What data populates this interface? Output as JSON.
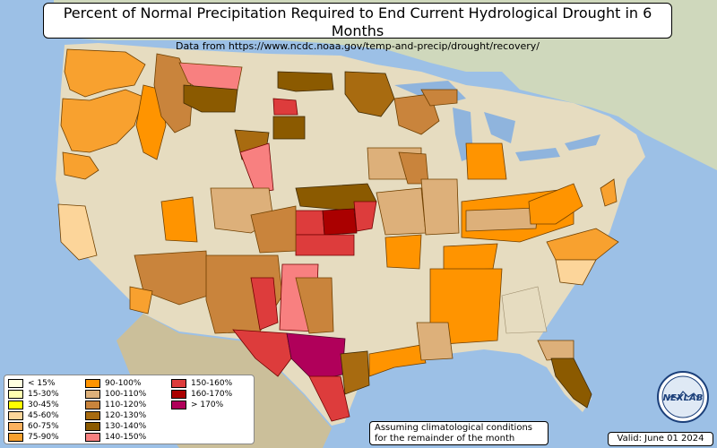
{
  "title": "Percent of Normal Precipitation Required to End Current Hydrological Drought in 6 Months",
  "subtitle": "Data from https://www.ncdc.noaa.gov/temp-and-precip/drought/recovery/",
  "legend": [
    {
      "label": "< 15%",
      "color": "#ffffe0"
    },
    {
      "label": "15-30%",
      "color": "#ffffb0"
    },
    {
      "label": "30-45%",
      "color": "#ffff00"
    },
    {
      "label": "45-60%",
      "color": "#fcd59a"
    },
    {
      "label": "60-75%",
      "color": "#fbb15e"
    },
    {
      "label": "75-90%",
      "color": "#f8a12f"
    },
    {
      "label": "90-100%",
      "color": "#ff9400"
    },
    {
      "label": "100-110%",
      "color": "#ddb07a"
    },
    {
      "label": "110-120%",
      "color": "#c9843c"
    },
    {
      "label": "120-130%",
      "color": "#a86b10"
    },
    {
      "label": "130-140%",
      "color": "#8b5a00"
    },
    {
      "label": "140-150%",
      "color": "#f88080"
    },
    {
      "label": "150-160%",
      "color": "#dd3c3c"
    },
    {
      "label": "160-170%",
      "color": "#aa0000"
    },
    {
      "label": "> 170%",
      "color": "#b0005a"
    }
  ],
  "note_line1": "Assuming climatological conditions",
  "note_line2": "for the remainder of the month",
  "valid": "Valid: June 01 2024",
  "logo_text": "NEXLAB",
  "colors": {
    "ocean": "#9cc0e6",
    "land": "#e6dcc0",
    "mexico": "#cbbf9a",
    "canada": "#cfd8bc"
  }
}
